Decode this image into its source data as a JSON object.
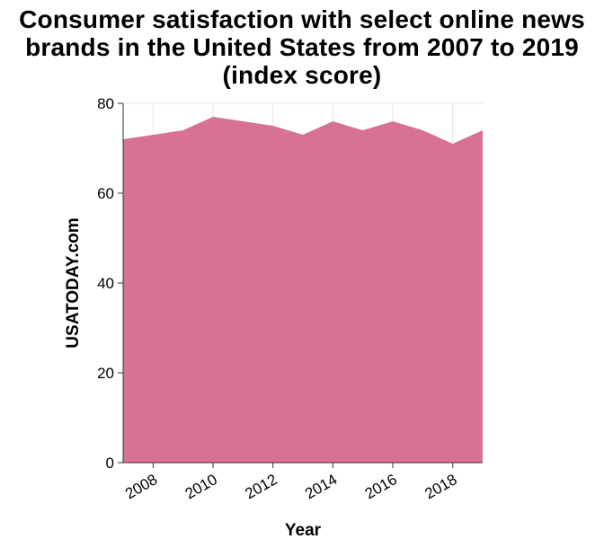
{
  "chart_data": {
    "type": "area",
    "title": "Consumer satisfaction with select online news brands in the United States from 2007 to 2019 (index score)",
    "xlabel": "Year",
    "ylabel": "USATODAY.com",
    "x": [
      2007,
      2008,
      2009,
      2010,
      2011,
      2012,
      2013,
      2014,
      2015,
      2016,
      2017,
      2018,
      2019
    ],
    "series": [
      {
        "values": [
          72,
          73,
          74,
          77,
          76,
          75,
          73,
          76,
          74,
          76,
          74,
          71,
          74
        ]
      }
    ],
    "xlim": [
      2007,
      2019
    ],
    "ylim": [
      0,
      80
    ],
    "x_ticks": [
      "2008",
      "2010",
      "2012",
      "2014",
      "2016",
      "2018"
    ],
    "y_ticks": [
      "0",
      "20",
      "40",
      "60",
      "80"
    ],
    "grid": true,
    "area_color": "#d77294"
  }
}
